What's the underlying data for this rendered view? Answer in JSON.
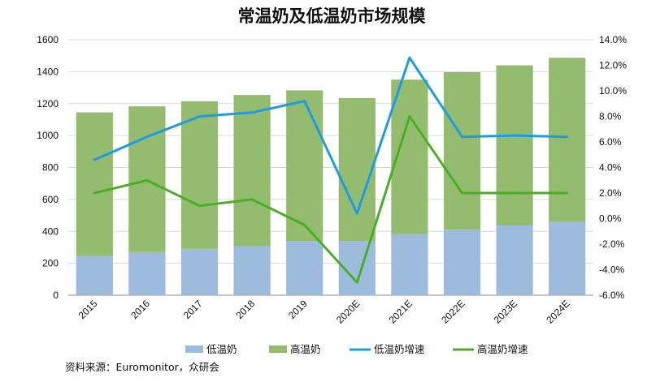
{
  "chart_data": {
    "type": "bar",
    "stacked": true,
    "title": "常温奶及低温奶市场规模",
    "categories": [
      "2015",
      "2016",
      "2017",
      "2018",
      "2019",
      "2020E",
      "2021E",
      "2022E",
      "2023E",
      "2024E"
    ],
    "series": [
      {
        "name": "低温奶",
        "type": "bar",
        "axis": "left",
        "color": "#9cbbdd",
        "values": [
          245,
          270,
          290,
          307,
          340,
          340,
          383,
          410,
          437,
          460
        ]
      },
      {
        "name": "高温奶",
        "type": "bar",
        "axis": "left",
        "color": "#94bc6e",
        "values": [
          900,
          913,
          925,
          947,
          943,
          895,
          967,
          987,
          1003,
          1027
        ]
      },
      {
        "name": "低温奶增速",
        "type": "line",
        "axis": "right",
        "color": "#1f9be2",
        "values": [
          4.6,
          6.4,
          8.0,
          8.3,
          9.2,
          0.4,
          12.6,
          6.4,
          6.5,
          6.4
        ]
      },
      {
        "name": "高温奶增速",
        "type": "line",
        "axis": "right",
        "color": "#4aae26",
        "values": [
          2.0,
          3.0,
          1.0,
          1.5,
          -0.5,
          -5.0,
          8.0,
          2.0,
          2.0,
          2.0
        ]
      }
    ],
    "y_left": {
      "min": 0,
      "max": 1600,
      "step": 200,
      "ticks": [
        "0",
        "200",
        "400",
        "600",
        "800",
        "1000",
        "1200",
        "1400",
        "1600"
      ]
    },
    "y_right": {
      "min": -6,
      "max": 14,
      "step": 2,
      "ticks": [
        "-6.0%",
        "-4.0%",
        "-2.0%",
        "0.0%",
        "2.0%",
        "4.0%",
        "6.0%",
        "8.0%",
        "10.0%",
        "12.0%",
        "14.0%"
      ]
    },
    "grid": true,
    "legend_position": "bottom"
  },
  "source_note": "资料来源：Euromonitor，众研会"
}
